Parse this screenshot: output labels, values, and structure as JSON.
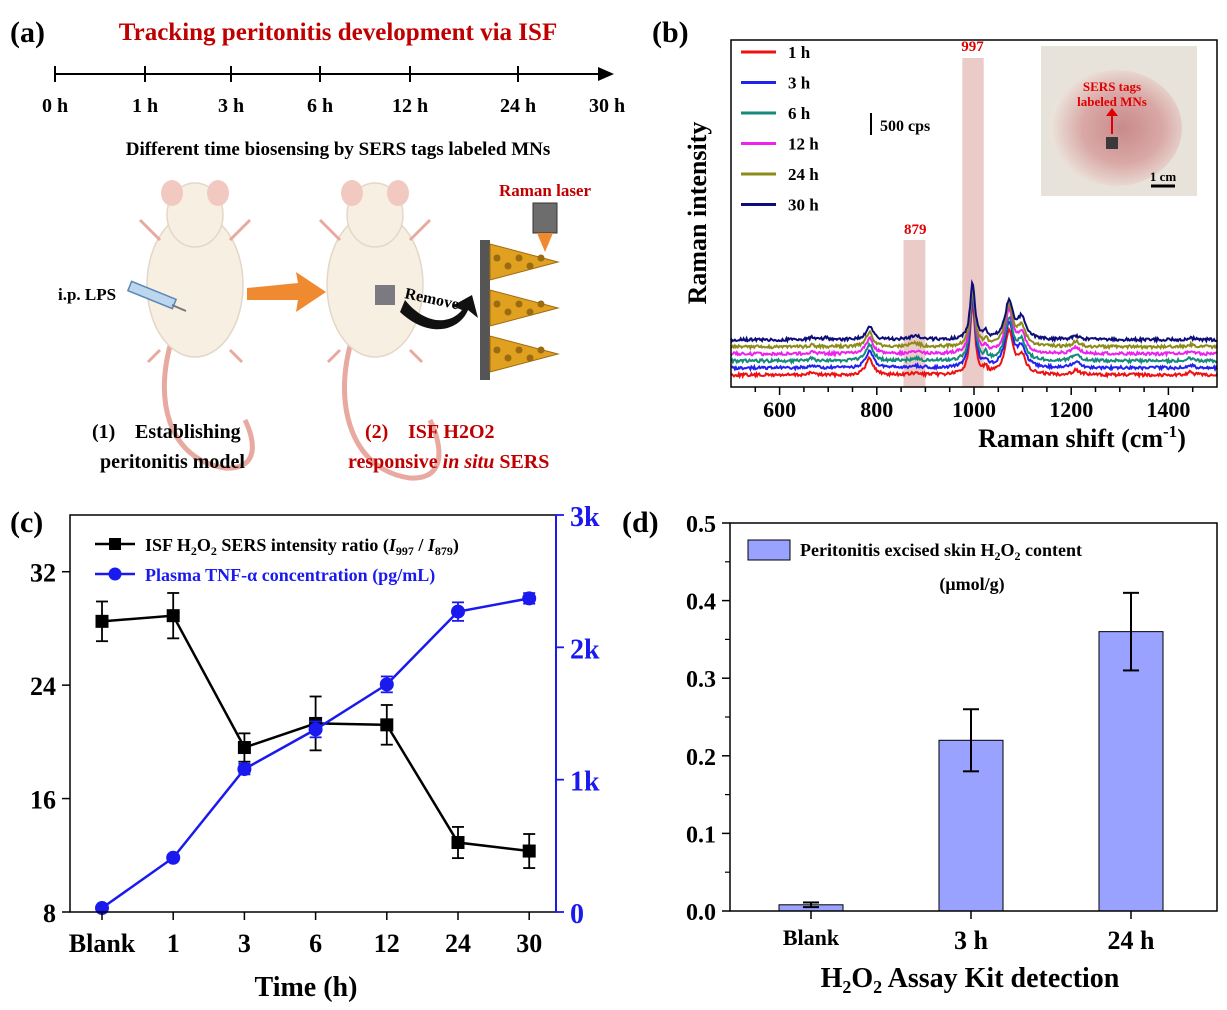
{
  "panel_a": {
    "label": "(a)",
    "title": "Tracking peritonitis development via ISF",
    "timeline": [
      "0 h",
      "1 h",
      "3 h",
      "6 h",
      "12 h",
      "24 h",
      "30 h"
    ],
    "caption": "Different time biosensing by SERS tags labeled MNs",
    "raman_laser": "Raman laser",
    "remove": "Remove",
    "ip_lps": "i.p. LPS",
    "step1_num": "(1)",
    "step1_line1": "Establishing",
    "step1_line2": "peritonitis model",
    "step2_num": "(2)",
    "step2_line1": "ISF H2O2",
    "step2_line2_pre": "responsive ",
    "step2_line2_it": "in situ",
    "step2_line2_post": " SERS",
    "colors": {
      "red": "#c00000",
      "arrow": "#ef8a30",
      "mn": "#e0a020"
    }
  },
  "chart_data": [
    {
      "panel": "(b)",
      "type": "line",
      "xlabel": "Raman shift (cm-1)",
      "ylabel": "Raman intensity",
      "xlim": [
        500,
        1500
      ],
      "xticks": [
        600,
        800,
        1000,
        1200,
        1400
      ],
      "scale_bar": "500 cps",
      "highlight_peaks": [
        879,
        997
      ],
      "offset_cps": 160,
      "series": [
        {
          "name": "1 h",
          "color": "#ee1111",
          "peaks": [
            [
              667,
              60,
              6
            ],
            [
              785,
              380,
              9
            ],
            [
              879,
              30,
              12
            ],
            [
              997,
              1650,
              6
            ],
            [
              1024,
              120,
              4
            ],
            [
              1072,
              950,
              10
            ],
            [
              1098,
              400,
              10
            ],
            [
              1210,
              110,
              9
            ],
            [
              1445,
              60,
              8
            ]
          ]
        },
        {
          "name": "3 h",
          "color": "#2222ee",
          "peaks": [
            [
              667,
              70,
              6
            ],
            [
              785,
              390,
              9
            ],
            [
              879,
              40,
              12
            ],
            [
              997,
              1620,
              6
            ],
            [
              1024,
              130,
              4
            ],
            [
              1072,
              1000,
              10
            ],
            [
              1098,
              420,
              10
            ],
            [
              1210,
              150,
              9
            ],
            [
              1445,
              70,
              8
            ]
          ]
        },
        {
          "name": "6 h",
          "color": "#158a7a",
          "peaks": [
            [
              667,
              60,
              6
            ],
            [
              785,
              370,
              9
            ],
            [
              879,
              50,
              12
            ],
            [
              997,
              1540,
              6
            ],
            [
              1024,
              130,
              4
            ],
            [
              1072,
              930,
              10
            ],
            [
              1098,
              400,
              10
            ],
            [
              1210,
              150,
              9
            ],
            [
              1445,
              60,
              8
            ]
          ]
        },
        {
          "name": "12 h",
          "color": "#ee22ee",
          "peaks": [
            [
              667,
              60,
              6
            ],
            [
              785,
              360,
              9
            ],
            [
              879,
              60,
              12
            ],
            [
              997,
              1480,
              6
            ],
            [
              1024,
              140,
              4
            ],
            [
              1072,
              960,
              10
            ],
            [
              1098,
              420,
              10
            ],
            [
              1210,
              140,
              9
            ],
            [
              1445,
              60,
              8
            ]
          ]
        },
        {
          "name": "24 h",
          "color": "#8c8c1a",
          "peaks": [
            [
              667,
              50,
              6
            ],
            [
              785,
              330,
              9
            ],
            [
              879,
              80,
              12
            ],
            [
              997,
              1300,
              6
            ],
            [
              1024,
              150,
              4
            ],
            [
              1072,
              900,
              10
            ],
            [
              1098,
              420,
              10
            ],
            [
              1210,
              110,
              9
            ],
            [
              1445,
              50,
              8
            ]
          ]
        },
        {
          "name": "30 h",
          "color": "#0d0d7a",
          "peaks": [
            [
              667,
              50,
              6
            ],
            [
              695,
              40,
              6
            ],
            [
              785,
              300,
              9
            ],
            [
              879,
              100,
              12
            ],
            [
              997,
              1270,
              6
            ],
            [
              1024,
              170,
              4
            ],
            [
              1072,
              850,
              10
            ],
            [
              1098,
              450,
              10
            ],
            [
              1210,
              90,
              9
            ],
            [
              1445,
              50,
              8
            ]
          ]
        }
      ],
      "inset_label_line1": "SERS tags",
      "inset_label_line2": "labeled MNs",
      "inset_scale": "1 cm"
    },
    {
      "panel": "(c)",
      "type": "line",
      "xlabel": "Time (h)",
      "categories": [
        "Blank",
        "1",
        "3",
        "6",
        "12",
        "24",
        "30"
      ],
      "ylim_left": [
        8,
        36
      ],
      "yticks_left": [
        8,
        16,
        24,
        32
      ],
      "ylim_right": [
        0,
        3000
      ],
      "yticks_right": [
        "0",
        "1k",
        "2k",
        "3k"
      ],
      "yticks_right_values": [
        0,
        1000,
        2000,
        3000
      ],
      "series": [
        {
          "name": "ISF H2O2 SERS intensity ratio (I997 / I879)",
          "axis": "left",
          "color": "#000000",
          "marker": "square",
          "values": [
            28.5,
            28.9,
            19.6,
            21.3,
            21.2,
            12.9,
            12.3
          ],
          "errors": [
            1.4,
            1.6,
            1.0,
            1.9,
            1.4,
            1.1,
            1.2
          ]
        },
        {
          "name": "Plasma TNF-α concentration (pg/mL)",
          "axis": "right",
          "color": "#1a1aee",
          "marker": "circle",
          "values": [
            30,
            410,
            1080,
            1380,
            1720,
            2270,
            2370
          ],
          "errors": [
            10,
            20,
            40,
            60,
            60,
            70,
            40
          ]
        }
      ]
    },
    {
      "panel": "(d)",
      "type": "bar",
      "xlabel": "H2O2 Assay Kit detection",
      "categories": [
        "Blank",
        "3 h",
        "24 h"
      ],
      "values": [
        0.008,
        0.22,
        0.36
      ],
      "errors": [
        0.003,
        0.04,
        0.05
      ],
      "ylim": [
        0,
        0.5
      ],
      "yticks": [
        "0.0",
        "0.1",
        "0.2",
        "0.3",
        "0.4",
        "0.5"
      ],
      "yticks_values": [
        0,
        0.1,
        0.2,
        0.3,
        0.4,
        0.5
      ],
      "legend": "Peritonitis excised skin H2O2 content",
      "legend_unit": "(μmol/g)",
      "bar_color": "#9aa2ff"
    }
  ]
}
